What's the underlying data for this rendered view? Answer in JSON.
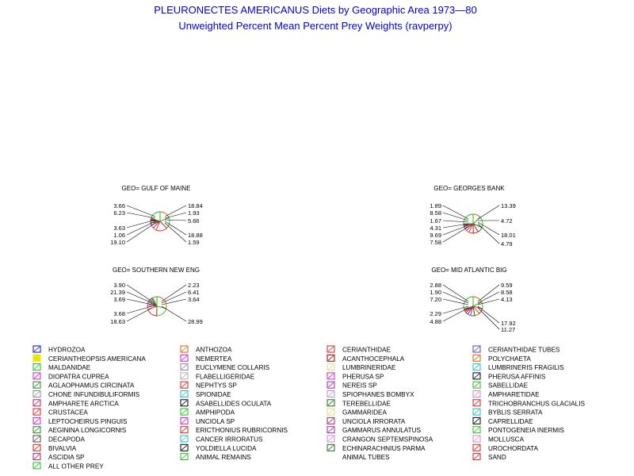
{
  "chart_data": {
    "type": "pie",
    "title": "PLEURONECTES AMERICANUS Diets by Geographic Area 1973—80",
    "subtitle": "Unweighted Percent Mean Percent Prey  Weights (ravperpy)",
    "panels": [
      {
        "name": "GEO= GULF OF MAINE",
        "left_labels": [
          "3.66",
          "6.23",
          "3.63",
          "1.06",
          "19.10"
        ],
        "right_labels": [
          "18.84",
          "1.93",
          "5.66",
          "18.88",
          "1.59"
        ],
        "slices": [
          {
            "category": "POLYCHAETA",
            "value": 18.84
          },
          {
            "category": "AMPHIPODA",
            "value": 18.88
          },
          {
            "category": "BIVALVIA",
            "value": 19.1
          },
          {
            "category": "ANTHOZOA",
            "value": 6.23
          },
          {
            "category": "NEMERTEA",
            "value": 5.66
          },
          {
            "category": "CRUSTACEA",
            "value": 3.66
          },
          {
            "category": "DECAPODA",
            "value": 3.63
          },
          {
            "category": "ECHINARACHNIUS PARMA",
            "value": 1.93
          },
          {
            "category": "ASCIDIA SP",
            "value": 1.59
          },
          {
            "category": "SAND",
            "value": 1.06
          },
          {
            "category": "ALL OTHER PREY",
            "value": 19.42
          }
        ]
      },
      {
        "name": "GEO= GEORGES BANK",
        "left_labels": [
          "1.89",
          "8.58",
          "1.67",
          "4.31",
          "9.69",
          "7.58"
        ],
        "right_labels": [
          "13.39",
          "4.72",
          "18.01",
          "4.79"
        ],
        "slices": [
          {
            "category": "POLYCHAETA",
            "value": 13.39
          },
          {
            "category": "AMPHIPODA",
            "value": 18.01
          },
          {
            "category": "ECHINARACHNIUS PARMA",
            "value": 9.69
          },
          {
            "category": "BIVALVIA",
            "value": 8.58
          },
          {
            "category": "SAND",
            "value": 7.58
          },
          {
            "category": "ANTHOZOA",
            "value": 4.79
          },
          {
            "category": "NEMERTEA",
            "value": 4.72
          },
          {
            "category": "DECAPODA",
            "value": 4.31
          },
          {
            "category": "CRUSTACEA",
            "value": 1.89
          },
          {
            "category": "ASCIDIA SP",
            "value": 1.67
          },
          {
            "category": "ALL OTHER PREY",
            "value": 25.37
          }
        ]
      },
      {
        "name": "GEO= SOUTHERN NEW ENG",
        "left_labels": [
          "3.90",
          "21.39",
          "3.69",
          "3.68",
          "18.63"
        ],
        "right_labels": [
          "2.23",
          "6.41",
          "3.64",
          "28.99"
        ],
        "slices": [
          {
            "category": "POLYCHAETA",
            "value": 28.99
          },
          {
            "category": "AMPHIPODA",
            "value": 21.39
          },
          {
            "category": "BIVALVIA",
            "value": 18.63
          },
          {
            "category": "ANTHOZOA",
            "value": 6.41
          },
          {
            "category": "NEMERTEA",
            "value": 3.9
          },
          {
            "category": "CRUSTACEA",
            "value": 3.69
          },
          {
            "category": "DECAPODA",
            "value": 3.68
          },
          {
            "category": "ECHINARACHNIUS PARMA",
            "value": 3.64
          },
          {
            "category": "ASCIDIA SP",
            "value": 2.23
          },
          {
            "category": "ALL OTHER PREY",
            "value": 7.44
          }
        ]
      },
      {
        "name": "GEO= MID ATLANTIC BIG",
        "left_labels": [
          "2.88",
          "1.90",
          "7.20",
          "2.29",
          "4.88"
        ],
        "right_labels": [
          "9.59",
          "8.58",
          "4.13",
          "17.92",
          "11.27"
        ],
        "slices": [
          {
            "category": "POLYCHAETA",
            "value": 17.92
          },
          {
            "category": "AMPHIPODA",
            "value": 11.27
          },
          {
            "category": "BIVALVIA",
            "value": 9.59
          },
          {
            "category": "ANTHOZOA",
            "value": 8.58
          },
          {
            "category": "ECHINARACHNIUS PARMA",
            "value": 7.2
          },
          {
            "category": "NEMERTEA",
            "value": 4.88
          },
          {
            "category": "DECAPODA",
            "value": 4.13
          },
          {
            "category": "CRUSTACEA",
            "value": 2.88
          },
          {
            "category": "SAND",
            "value": 2.29
          },
          {
            "category": "ASCIDIA SP",
            "value": 1.9
          },
          {
            "category": "ALL OTHER PREY",
            "value": 29.36
          }
        ]
      }
    ],
    "legend": {
      "placement": "bottom",
      "columns": [
        [
          {
            "label": "HYDROZOA",
            "color": "#0000cc"
          },
          {
            "label": "CERIANTHEOPSIS AMERICANA",
            "color": "#e8e800"
          },
          {
            "label": "MALDANIDAE",
            "color": "#22bb22"
          },
          {
            "label": "DIOPATRA CUPREA",
            "color": "#cc22cc"
          },
          {
            "label": "AGLAOPHAMUS CIRCINATA",
            "color": "#228822"
          },
          {
            "label": "CHONE INFUNDIBULIFORMIS",
            "color": "#888888"
          },
          {
            "label": "AMPHARETE ARCTICA",
            "color": "#aa2266"
          },
          {
            "label": "CRUSTACEA",
            "color": "#cc2222"
          },
          {
            "label": "LEPTOCHEIRUS PINGUIS",
            "color": "#cc22cc"
          },
          {
            "label": "AEGININA LONGICORNIS",
            "color": "#228822"
          },
          {
            "label": "DECAPODA",
            "color": "#444444"
          },
          {
            "label": "BIVALVIA",
            "color": "#cc2222"
          },
          {
            "label": "ASCIDIA SP",
            "color": "#aa2266"
          },
          {
            "label": "ALL OTHER PREY",
            "color": "#22bb22"
          }
        ],
        [
          {
            "label": "ANTHOZOA",
            "color": "#cc6600"
          },
          {
            "label": "NEMERTEA",
            "color": "#cc22cc"
          },
          {
            "label": "EUCLYMENE COLLARIS",
            "color": "#888888"
          },
          {
            "label": "FLABELLIGERIDAE",
            "color": "#aaaaaa"
          },
          {
            "label": "NEPHTYS SP",
            "color": "#cc2222"
          },
          {
            "label": "SPIONIDAE",
            "color": "#22bbbb"
          },
          {
            "label": "ASABELLIDES OCULATA",
            "color": "#000000"
          },
          {
            "label": "AMPHIPODA",
            "color": "#22bb22"
          },
          {
            "label": "UNCIOLA SP",
            "color": "#cc22cc"
          },
          {
            "label": "ERICTHONIUS RUBRICORNIS",
            "color": "#cc2222"
          },
          {
            "label": "CANCER IRRORATUS",
            "color": "#22bbbb"
          },
          {
            "label": "YOLDIELLA LUCIDA",
            "color": "#000000"
          },
          {
            "label": "ANIMAL REMAINS",
            "color": "#22bb22"
          }
        ],
        [
          {
            "label": "CERIANTHIDAE",
            "color": "#cc2222"
          },
          {
            "label": "ACANTHOCEPHALA",
            "color": "#880000"
          },
          {
            "label": "LUMBRINERIDAE",
            "color": "#dddd88"
          },
          {
            "label": "PHERUSA SP",
            "color": "#cc22cc"
          },
          {
            "label": "NEREIS SP",
            "color": "#aa22aa"
          },
          {
            "label": "SPIOPHANES BOMBYX",
            "color": "#cc88cc"
          },
          {
            "label": "TEREBELLIDAE",
            "color": "#226622"
          },
          {
            "label": "GAMMARIDEA",
            "color": "#dddd88"
          },
          {
            "label": "UNCIOLA IRRORATA",
            "color": "#aa2266"
          },
          {
            "label": "GAMMARUS ANNULATUS",
            "color": "#aa22aa"
          },
          {
            "label": "CRANGON SEPTEMSPINOSA",
            "color": "#cc88cc"
          },
          {
            "label": "ECHINARACHNIUS PARMA",
            "color": "#226622"
          },
          {
            "label": "ANIMAL TUBES",
            "color": "#ffffff"
          }
        ],
        [
          {
            "label": "CERIANTHIDAE TUBES",
            "color": "#4444cc"
          },
          {
            "label": "POLYCHAETA",
            "color": "#cc6600"
          },
          {
            "label": "LUMBRINERIS FRAGILIS",
            "color": "#22bbbb"
          },
          {
            "label": "PHERUSA AFFINIS",
            "color": "#000000"
          },
          {
            "label": "SABELLIDAE",
            "color": "#22bb22"
          },
          {
            "label": "AMPHARETIDAE",
            "color": "#cc88cc"
          },
          {
            "label": "TRICHOBRANCHUS GLACIALIS",
            "color": "#cc2222"
          },
          {
            "label": "BYBLIS SERRATA",
            "color": "#22bbbb"
          },
          {
            "label": "CAPRELLIDAE",
            "color": "#000000"
          },
          {
            "label": "PONTOGENEIA INERMIS",
            "color": "#22bb22"
          },
          {
            "label": "MOLLUSCA",
            "color": "#cc88cc"
          },
          {
            "label": "UROCHORDATA",
            "color": "#cc2222"
          },
          {
            "label": "SAND",
            "color": "#cc2222"
          }
        ]
      ]
    }
  }
}
